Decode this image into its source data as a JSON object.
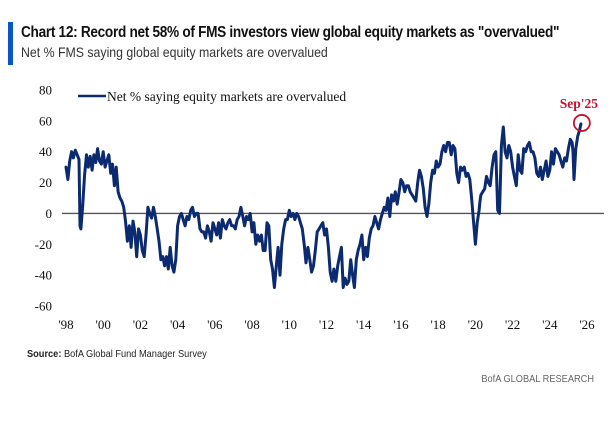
{
  "header": {
    "title": "Chart 12: Record net 58% of FMS investors view global equity markets as \"overvalued\"",
    "subtitle": "Net % FMS saying global equity markets are overvalued"
  },
  "footer": {
    "source_label": "Source:",
    "source_text": " BofA Global Fund Manager Survey",
    "brand": "BofA GLOBAL RESEARCH"
  },
  "colors": {
    "accent_bar": "#0a56c9",
    "series_line": "#0b2a6f",
    "annotation": "#c8102e",
    "zero_line": "#555555"
  },
  "chart_data": {
    "type": "line",
    "title": "Net % FMS saying global equity markets are overvalued",
    "xlabel": "",
    "ylabel": "",
    "ylim": [
      -60,
      80
    ],
    "xlim": [
      1998,
      2026
    ],
    "y_ticks": [
      80,
      60,
      40,
      20,
      0,
      -20,
      -40,
      -60
    ],
    "x_ticks": [
      "'98",
      "'00",
      "'02",
      "'04",
      "'06",
      "'08",
      "'10",
      "'12",
      "'14",
      "'16",
      "'18",
      "'20",
      "'22",
      "'24",
      "'26"
    ],
    "x_tick_years": [
      1998,
      2000,
      2002,
      2004,
      2006,
      2008,
      2010,
      2012,
      2014,
      2016,
      2018,
      2020,
      2022,
      2024,
      2026
    ],
    "grid": false,
    "zero_line": true,
    "legend": {
      "position": "top-left",
      "entries": [
        "Net % saying equity markets are overvalued"
      ]
    },
    "annotations": [
      {
        "text": "Sep'25",
        "x": 2025.67,
        "y": 58,
        "style": "red circle"
      }
    ],
    "series": [
      {
        "name": "Net % saying equity markets are overvalued",
        "x": [
          1998.0,
          1998.1,
          1998.2,
          1998.3,
          1998.4,
          1998.5,
          1998.6,
          1998.7,
          1998.75,
          1998.8,
          1998.9,
          1999.0,
          1999.1,
          1999.2,
          1999.3,
          1999.4,
          1999.5,
          1999.6,
          1999.7,
          1999.8,
          1999.9,
          2000.0,
          2000.1,
          2000.2,
          2000.3,
          2000.4,
          2000.5,
          2000.6,
          2000.7,
          2000.8,
          2000.9,
          2001.0,
          2001.1,
          2001.2,
          2001.3,
          2001.4,
          2001.5,
          2001.6,
          2001.7,
          2001.8,
          2001.9,
          2002.0,
          2002.1,
          2002.2,
          2002.3,
          2002.4,
          2002.5,
          2002.6,
          2002.7,
          2002.8,
          2002.9,
          2003.0,
          2003.1,
          2003.2,
          2003.3,
          2003.4,
          2003.5,
          2003.6,
          2003.7,
          2003.8,
          2003.9,
          2004.0,
          2004.1,
          2004.2,
          2004.3,
          2004.4,
          2004.5,
          2004.6,
          2004.7,
          2004.8,
          2004.9,
          2005.0,
          2005.1,
          2005.2,
          2005.3,
          2005.4,
          2005.5,
          2005.6,
          2005.7,
          2005.8,
          2005.9,
          2006.0,
          2006.1,
          2006.2,
          2006.3,
          2006.4,
          2006.5,
          2006.6,
          2006.7,
          2006.8,
          2006.9,
          2007.0,
          2007.1,
          2007.2,
          2007.3,
          2007.4,
          2007.5,
          2007.6,
          2007.7,
          2007.8,
          2007.9,
          2008.0,
          2008.1,
          2008.2,
          2008.3,
          2008.4,
          2008.5,
          2008.6,
          2008.7,
          2008.8,
          2008.9,
          2009.0,
          2009.1,
          2009.2,
          2009.3,
          2009.4,
          2009.5,
          2009.6,
          2009.7,
          2009.8,
          2009.9,
          2010.0,
          2010.1,
          2010.2,
          2010.3,
          2010.4,
          2010.5,
          2010.6,
          2010.7,
          2010.8,
          2010.9,
          2011.0,
          2011.1,
          2011.2,
          2011.3,
          2011.4,
          2011.5,
          2011.6,
          2011.7,
          2011.8,
          2011.9,
          2012.0,
          2012.1,
          2012.2,
          2012.3,
          2012.4,
          2012.5,
          2012.6,
          2012.7,
          2012.8,
          2012.9,
          2013.0,
          2013.1,
          2013.2,
          2013.3,
          2013.4,
          2013.5,
          2013.6,
          2013.7,
          2013.8,
          2013.9,
          2014.0,
          2014.1,
          2014.2,
          2014.3,
          2014.4,
          2014.5,
          2014.6,
          2014.7,
          2014.8,
          2014.9,
          2015.0,
          2015.1,
          2015.2,
          2015.3,
          2015.4,
          2015.5,
          2015.6,
          2015.7,
          2015.8,
          2015.9,
          2016.0,
          2016.1,
          2016.2,
          2016.3,
          2016.4,
          2016.5,
          2016.6,
          2016.7,
          2016.8,
          2016.9,
          2017.0,
          2017.1,
          2017.2,
          2017.3,
          2017.4,
          2017.5,
          2017.6,
          2017.7,
          2017.8,
          2017.9,
          2018.0,
          2018.1,
          2018.2,
          2018.3,
          2018.4,
          2018.5,
          2018.6,
          2018.7,
          2018.8,
          2018.9,
          2019.0,
          2019.1,
          2019.2,
          2019.3,
          2019.4,
          2019.5,
          2019.6,
          2019.7,
          2019.8,
          2019.9,
          2020.0,
          2020.1,
          2020.2,
          2020.25,
          2020.3,
          2020.4,
          2020.5,
          2020.6,
          2020.7,
          2020.8,
          2020.9,
          2021.0,
          2021.1,
          2021.2,
          2021.3,
          2021.4,
          2021.5,
          2021.6,
          2021.7,
          2021.8,
          2021.9,
          2022.0,
          2022.1,
          2022.2,
          2022.3,
          2022.4,
          2022.5,
          2022.6,
          2022.7,
          2022.8,
          2022.9,
          2023.0,
          2023.1,
          2023.2,
          2023.3,
          2023.4,
          2023.5,
          2023.6,
          2023.7,
          2023.8,
          2023.9,
          2024.0,
          2024.1,
          2024.2,
          2024.3,
          2024.4,
          2024.5,
          2024.6,
          2024.7,
          2024.8,
          2024.9,
          2025.0,
          2025.1,
          2025.2,
          2025.25,
          2025.3,
          2025.4,
          2025.5,
          2025.6,
          2025.67
        ],
        "values": [
          30,
          22,
          34,
          40,
          36,
          41,
          38,
          35,
          -8,
          -10,
          5,
          25,
          38,
          30,
          37,
          28,
          38,
          33,
          42,
          34,
          32,
          40,
          30,
          34,
          38,
          26,
          32,
          18,
          30,
          14,
          10,
          8,
          4,
          -5,
          -18,
          -8,
          -22,
          -5,
          -12,
          -28,
          -10,
          -14,
          -24,
          -28,
          -14,
          4,
          0,
          -3,
          4,
          -2,
          -10,
          -18,
          -30,
          -28,
          -34,
          -28,
          -36,
          -22,
          -34,
          -38,
          -30,
          -8,
          -2,
          0,
          -4,
          -8,
          -2,
          -4,
          2,
          4,
          -2,
          0,
          0,
          -10,
          -12,
          -12,
          -16,
          -8,
          -12,
          -18,
          -6,
          -10,
          -14,
          -6,
          -16,
          -4,
          -8,
          -10,
          -6,
          -4,
          -8,
          -8,
          -10,
          -4,
          -2,
          4,
          -2,
          -8,
          -2,
          -4,
          0,
          -12,
          -6,
          -20,
          -14,
          -18,
          -14,
          -24,
          -24,
          -6,
          -8,
          -30,
          -36,
          -48,
          -34,
          -22,
          -40,
          -20,
          -10,
          -4,
          -4,
          2,
          -2,
          0,
          -4,
          0,
          -2,
          -6,
          -10,
          -20,
          -32,
          -22,
          -30,
          -38,
          -34,
          -24,
          -12,
          -10,
          -8,
          -6,
          -14,
          -10,
          -22,
          -38,
          -44,
          -36,
          -44,
          -34,
          -28,
          -22,
          -48,
          -42,
          -46,
          -44,
          -30,
          -40,
          -48,
          -30,
          -24,
          -20,
          -14,
          -30,
          -22,
          -28,
          -16,
          -10,
          -8,
          -2,
          -6,
          -10,
          -4,
          0,
          4,
          2,
          10,
          -2,
          12,
          8,
          14,
          6,
          14,
          22,
          20,
          14,
          18,
          18,
          14,
          12,
          10,
          8,
          20,
          28,
          24,
          16,
          4,
          -2,
          6,
          20,
          28,
          26,
          34,
          30,
          32,
          40,
          44,
          40,
          46,
          46,
          38,
          44,
          42,
          26,
          20,
          30,
          28,
          30,
          24,
          26,
          22,
          10,
          -5,
          -20,
          -6,
          2,
          8,
          12,
          14,
          16,
          24,
          20,
          18,
          30,
          38,
          40,
          2,
          0,
          44,
          56,
          40,
          36,
          44,
          40,
          30,
          24,
          18,
          38,
          28,
          26,
          42,
          40,
          44,
          46,
          40,
          40,
          36,
          26,
          24,
          30,
          22,
          28,
          34,
          24,
          28,
          40,
          32,
          42,
          40,
          38,
          34,
          30,
          36,
          34,
          42,
          48,
          46,
          40,
          22,
          42,
          50,
          54,
          58
        ]
      }
    ]
  }
}
